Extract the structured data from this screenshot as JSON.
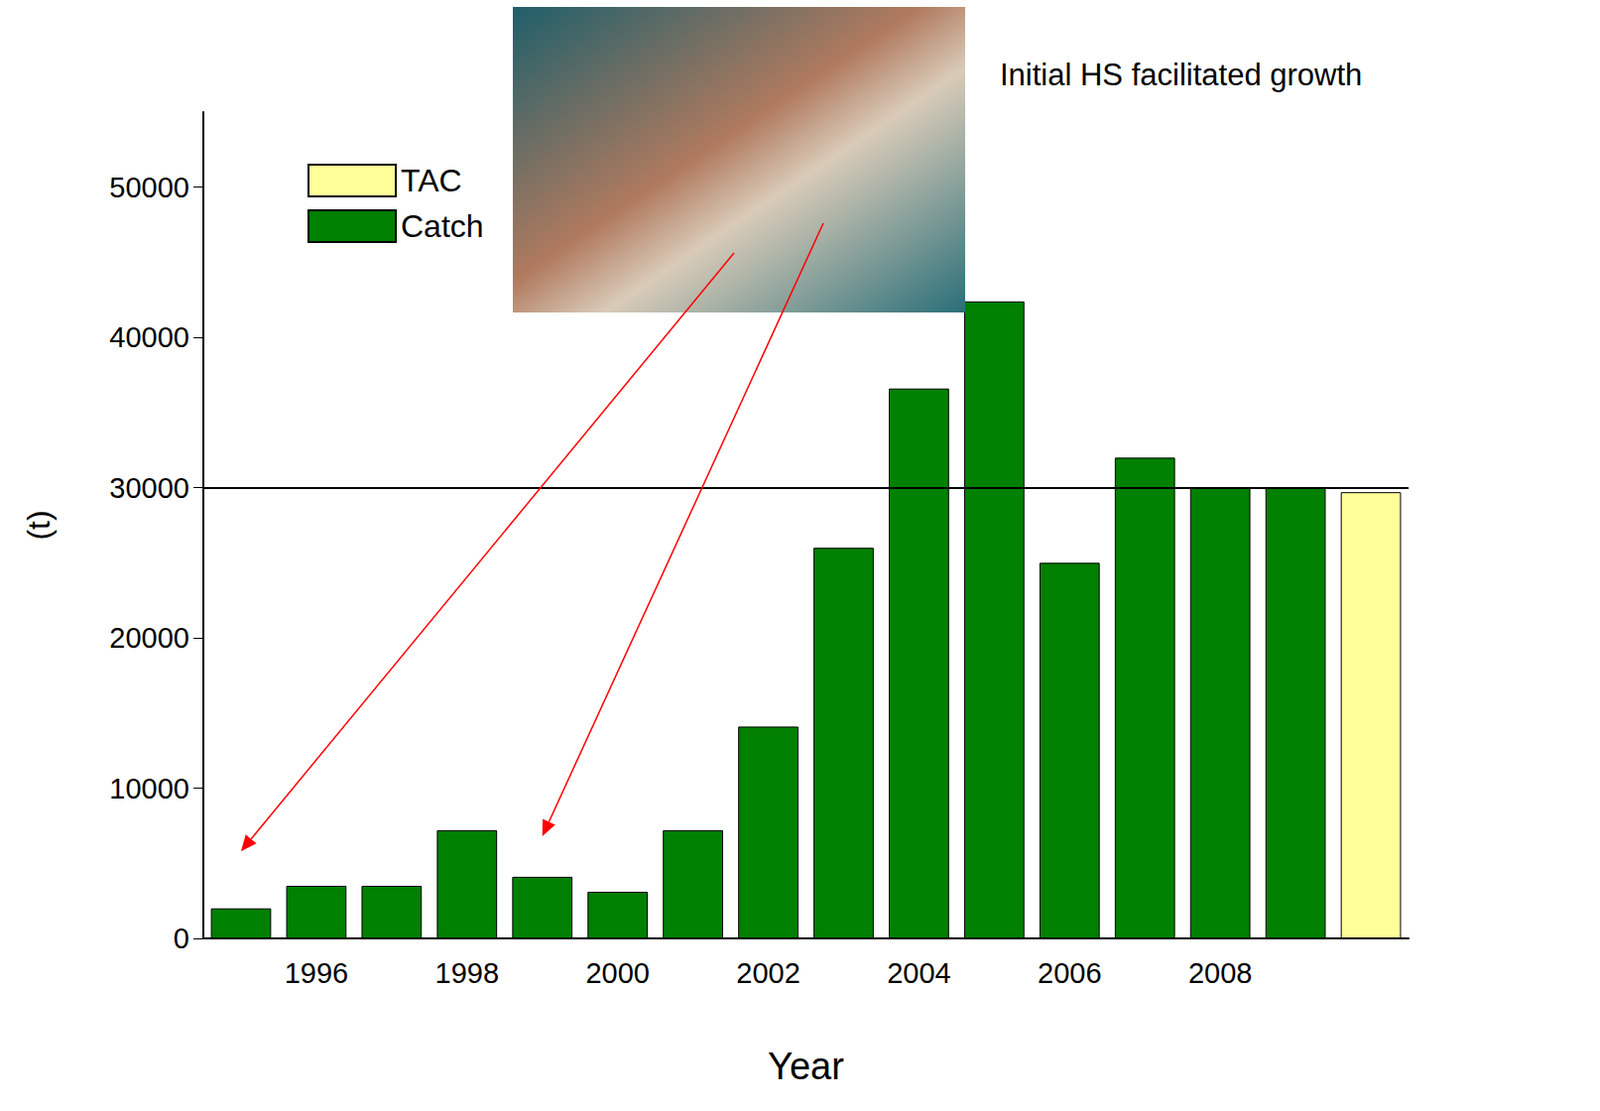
{
  "chart_data": {
    "type": "bar",
    "x_label": "Year",
    "y_label": "(t)",
    "annotation": "Initial HS facilitated growth",
    "arrows": [
      {
        "x": 0,
        "y": 5800
      },
      {
        "x": 4,
        "y": 6800
      }
    ],
    "hline": 30000,
    "categories": [
      null,
      "1996",
      null,
      "1998",
      null,
      "2000",
      null,
      "2002",
      null,
      "2004",
      null,
      "2006",
      null,
      "2008",
      null,
      null
    ],
    "series": [
      {
        "name": "TAC",
        "color": "#ffff99",
        "values": [
          null,
          null,
          null,
          null,
          null,
          null,
          null,
          null,
          null,
          null,
          null,
          null,
          null,
          null,
          null,
          29700
        ]
      },
      {
        "name": "Catch",
        "color": "#008000",
        "values": [
          2000,
          3500,
          3500,
          7200,
          4100,
          3100,
          7200,
          14100,
          26000,
          36600,
          42400,
          25000,
          32000,
          30000,
          30000,
          null
        ]
      }
    ],
    "ylim": [
      0,
      55000
    ],
    "yticks": [
      0,
      10000,
      20000,
      30000,
      40000,
      50000
    ],
    "grid": false,
    "legend": "upper left"
  }
}
